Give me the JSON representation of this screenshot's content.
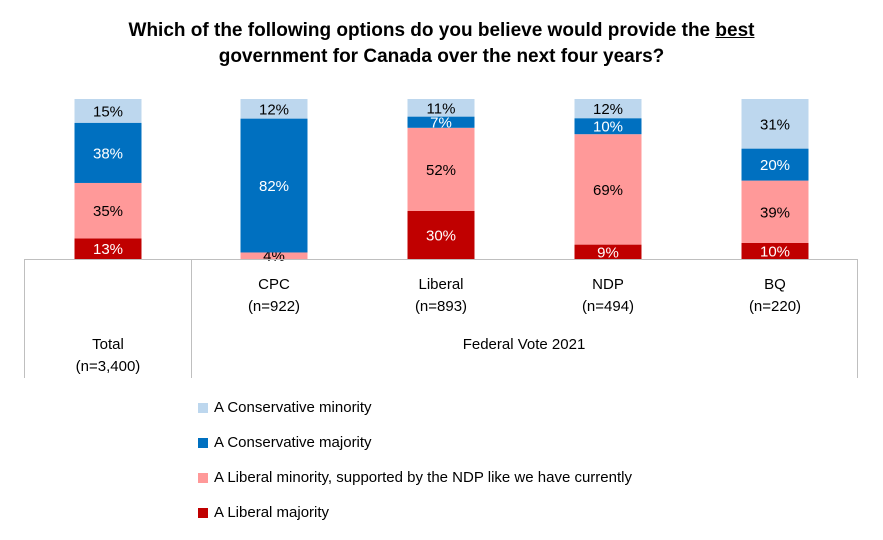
{
  "chart_data": {
    "type": "bar",
    "stacked": true,
    "title_parts": [
      "Which of the following options do you believe would provide the ",
      "best",
      " government for Canada over the next four years?"
    ],
    "categories": [
      "Total",
      "CPC",
      "Liberal",
      "NDP",
      "BQ"
    ],
    "category_samples": [
      "(n=3,400)",
      "(n=922)",
      "(n=893)",
      "(n=494)",
      "(n=220)"
    ],
    "group_label": "Federal Vote 2021",
    "series": [
      {
        "name": "A Liberal majority",
        "color": "#C00000",
        "label_color": "#ffffff",
        "values": [
          13,
          0,
          30,
          9,
          10
        ]
      },
      {
        "name": "A Liberal minority, supported by the NDP like we have currently",
        "color": "#FF9999",
        "label_color": "#000000",
        "values": [
          35,
          4,
          52,
          69,
          39
        ]
      },
      {
        "name": "A Conservative majority",
        "color": "#0070C0",
        "label_color": "#ffffff",
        "values": [
          38,
          82,
          7,
          10,
          20
        ]
      },
      {
        "name": "A Conservative minority",
        "color": "#BDD7EE",
        "label_color": "#000000",
        "values": [
          15,
          12,
          11,
          12,
          31
        ]
      }
    ],
    "legend_order": [
      3,
      2,
      1,
      0
    ],
    "legend_position": "bottom",
    "value_suffix": "%",
    "grid": false
  }
}
